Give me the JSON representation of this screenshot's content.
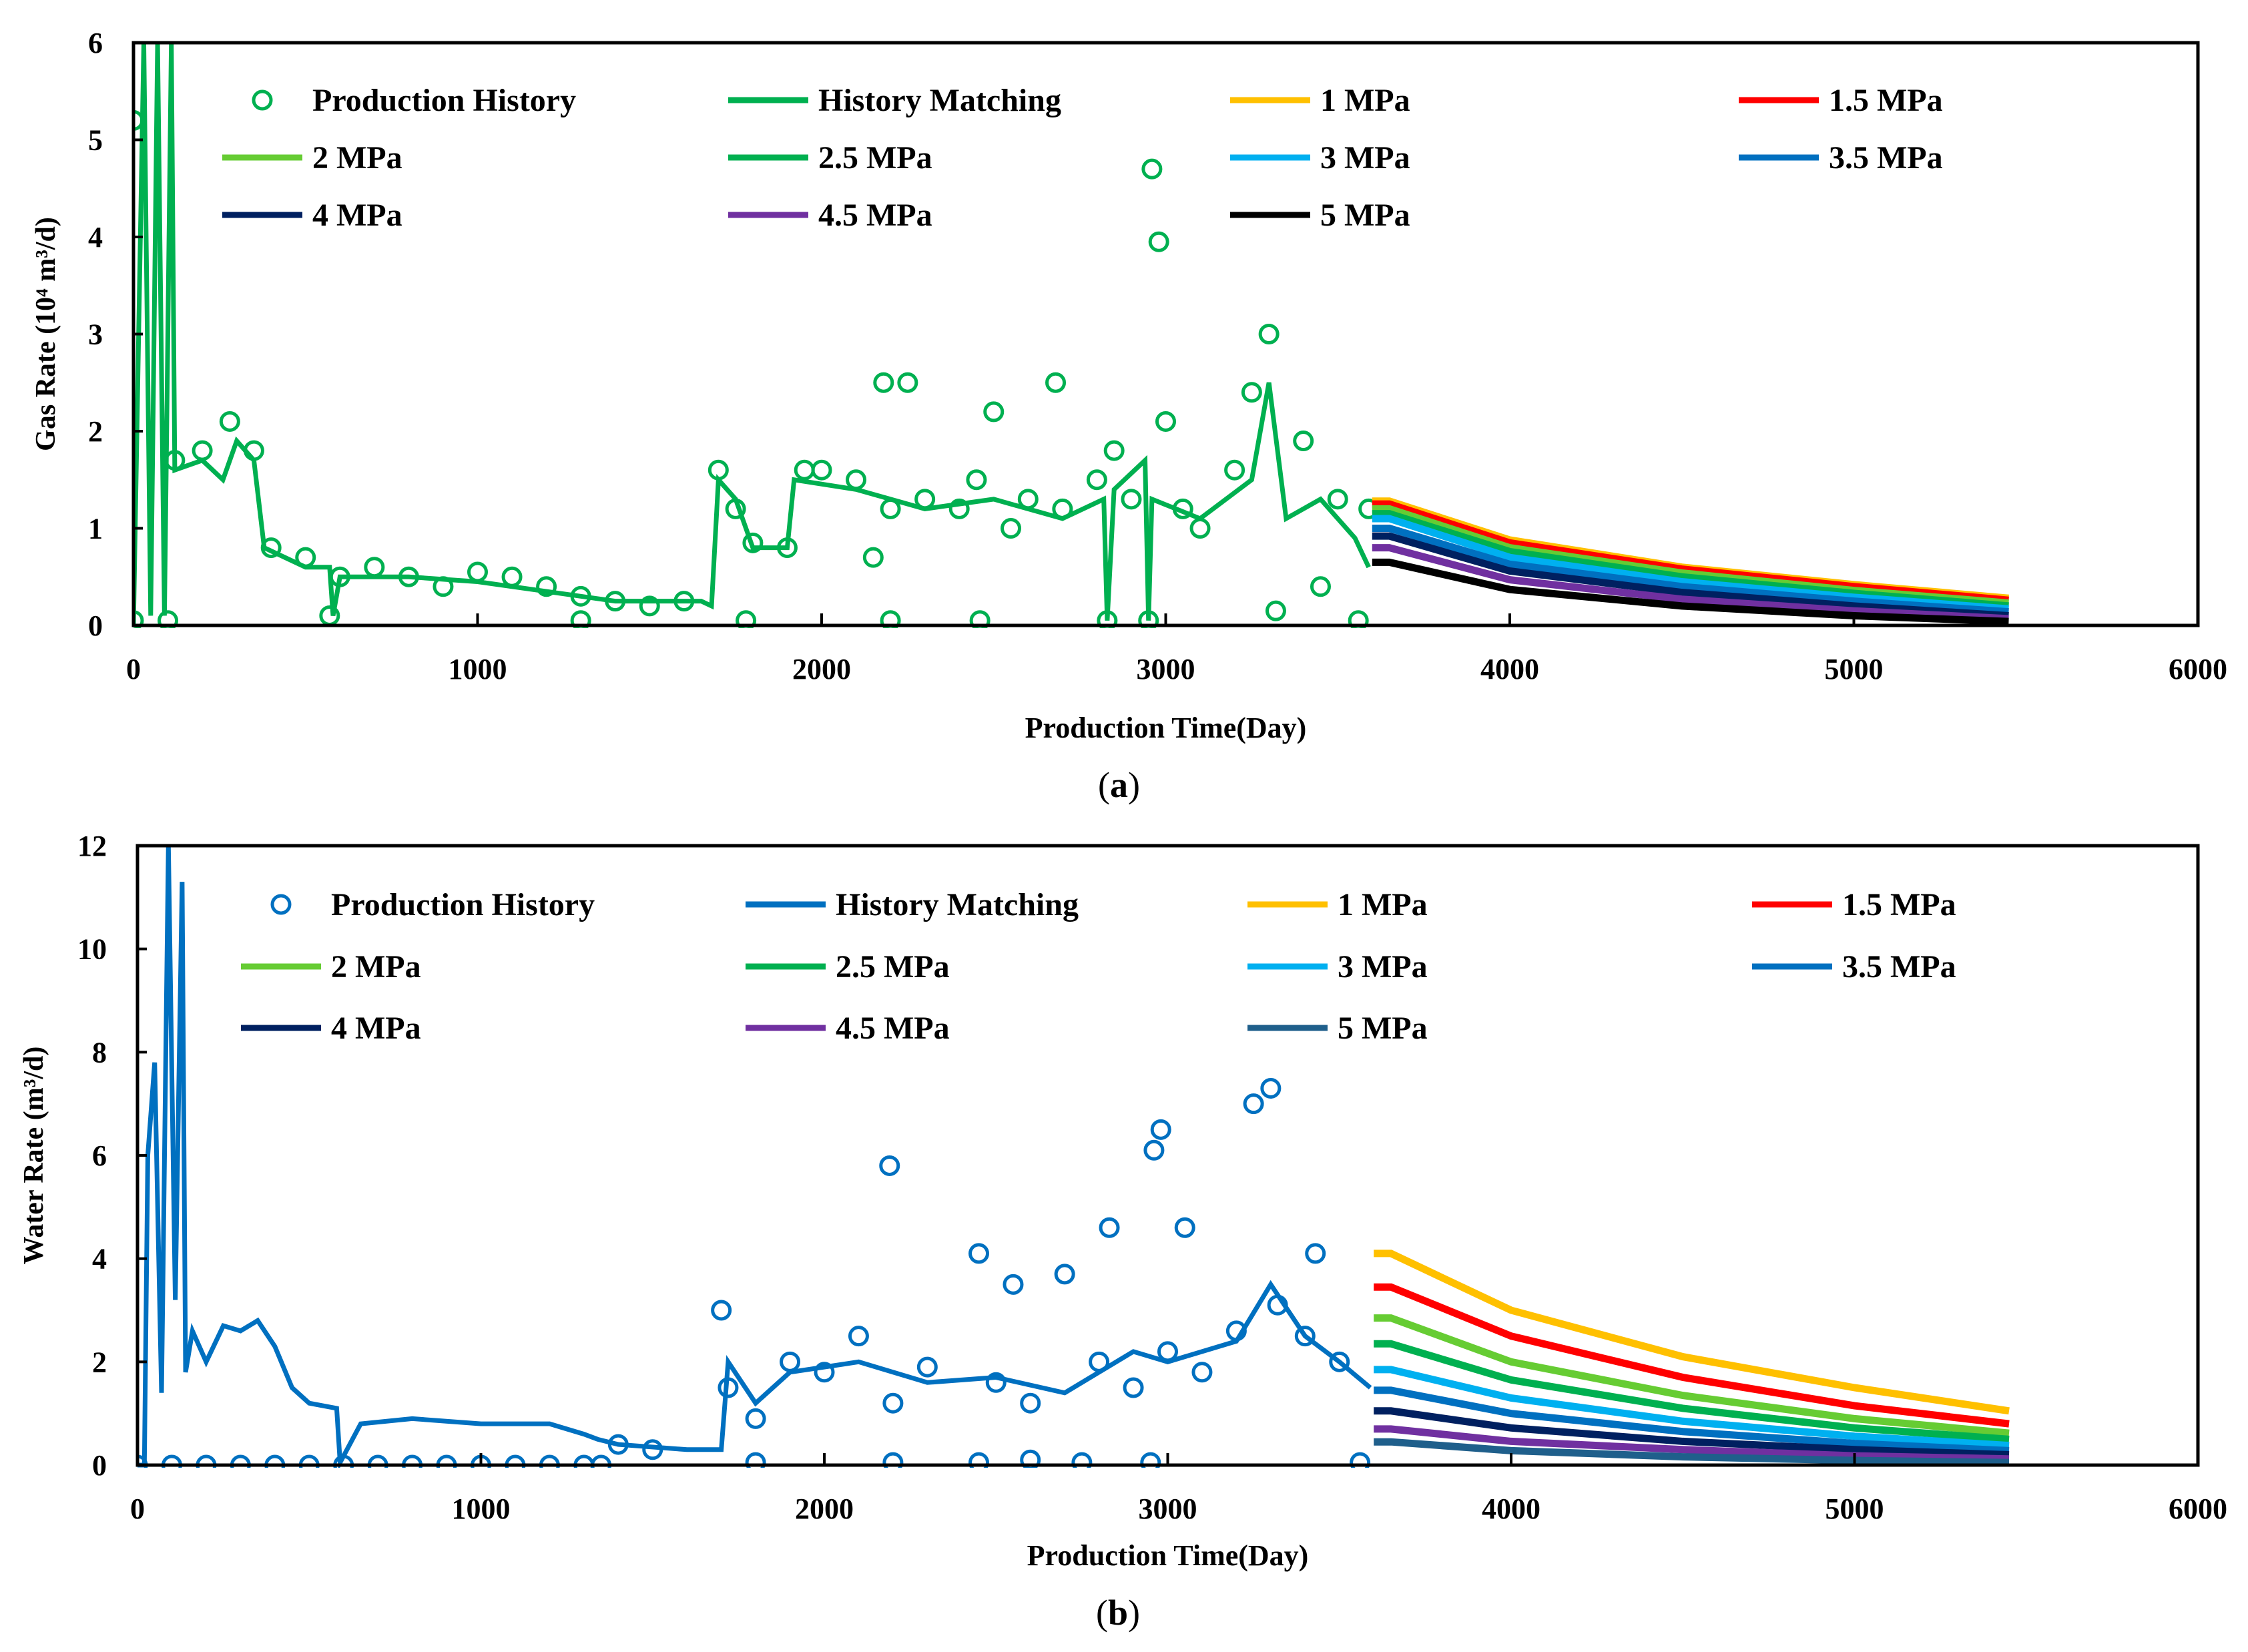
{
  "chart_data": [
    {
      "type": "line",
      "panel_label": "a",
      "xlabel": "Production Time(Day)",
      "ylabel": "Gas Rate (10⁴ m³/d)",
      "xlim": [
        0,
        6000
      ],
      "ylim": [
        0,
        6
      ],
      "xticks": [
        0,
        1000,
        2000,
        3000,
        4000,
        5000,
        6000
      ],
      "yticks": [
        0,
        1,
        2,
        3,
        4,
        5,
        6
      ],
      "grid": false,
      "legend_placement": "top (inside, 4 columns)",
      "history_scatter": {
        "name": "Production History",
        "color": "#00B050",
        "points": [
          [
            0,
            5.2
          ],
          [
            0,
            0.05
          ],
          [
            100,
            0.05
          ],
          [
            120,
            1.7
          ],
          [
            200,
            1.8
          ],
          [
            280,
            2.1
          ],
          [
            350,
            1.8
          ],
          [
            400,
            0.8
          ],
          [
            500,
            0.7
          ],
          [
            570,
            0.1
          ],
          [
            600,
            0.5
          ],
          [
            700,
            0.6
          ],
          [
            800,
            0.5
          ],
          [
            900,
            0.4
          ],
          [
            1000,
            0.55
          ],
          [
            1100,
            0.5
          ],
          [
            1200,
            0.4
          ],
          [
            1300,
            0.05
          ],
          [
            1300,
            0.3
          ],
          [
            1400,
            0.25
          ],
          [
            1500,
            0.2
          ],
          [
            1600,
            0.25
          ],
          [
            1700,
            1.6
          ],
          [
            1750,
            1.2
          ],
          [
            1780,
            0.05
          ],
          [
            1800,
            0.85
          ],
          [
            1900,
            0.8
          ],
          [
            1950,
            1.6
          ],
          [
            2000,
            1.6
          ],
          [
            2100,
            1.5
          ],
          [
            2150,
            0.7
          ],
          [
            2180,
            2.5
          ],
          [
            2200,
            1.2
          ],
          [
            2200,
            0.05
          ],
          [
            2250,
            2.5
          ],
          [
            2300,
            1.3
          ],
          [
            2400,
            1.2
          ],
          [
            2450,
            1.5
          ],
          [
            2460,
            0.05
          ],
          [
            2500,
            2.2
          ],
          [
            2550,
            1.0
          ],
          [
            2600,
            1.3
          ],
          [
            2680,
            2.5
          ],
          [
            2700,
            1.2
          ],
          [
            2800,
            1.5
          ],
          [
            2830,
            0.05
          ],
          [
            2850,
            1.8
          ],
          [
            2900,
            1.3
          ],
          [
            2950,
            0.05
          ],
          [
            2960,
            4.7
          ],
          [
            2980,
            3.95
          ],
          [
            3000,
            2.1
          ],
          [
            3050,
            1.2
          ],
          [
            3100,
            1.0
          ],
          [
            3200,
            1.6
          ],
          [
            3250,
            2.4
          ],
          [
            3300,
            3.0
          ],
          [
            3320,
            0.15
          ],
          [
            3400,
            1.9
          ],
          [
            3450,
            0.4
          ],
          [
            3500,
            1.3
          ],
          [
            3560,
            0.05
          ],
          [
            3590,
            1.2
          ]
        ]
      },
      "history_line": {
        "name": "History Matching",
        "color": "#00B050",
        "points": [
          [
            0,
            0
          ],
          [
            30,
            6
          ],
          [
            50,
            0.1
          ],
          [
            70,
            6
          ],
          [
            90,
            0.1
          ],
          [
            110,
            6
          ],
          [
            120,
            1.6
          ],
          [
            200,
            1.7
          ],
          [
            260,
            1.5
          ],
          [
            300,
            1.9
          ],
          [
            350,
            1.7
          ],
          [
            380,
            0.8
          ],
          [
            500,
            0.6
          ],
          [
            570,
            0.6
          ],
          [
            580,
            0.1
          ],
          [
            600,
            0.5
          ],
          [
            800,
            0.5
          ],
          [
            1000,
            0.45
          ],
          [
            1200,
            0.35
          ],
          [
            1400,
            0.25
          ],
          [
            1650,
            0.25
          ],
          [
            1680,
            0.2
          ],
          [
            1700,
            1.5
          ],
          [
            1750,
            1.3
          ],
          [
            1800,
            0.8
          ],
          [
            1900,
            0.8
          ],
          [
            1920,
            1.5
          ],
          [
            2100,
            1.4
          ],
          [
            2300,
            1.2
          ],
          [
            2500,
            1.3
          ],
          [
            2700,
            1.1
          ],
          [
            2820,
            1.3
          ],
          [
            2830,
            0.05
          ],
          [
            2850,
            1.4
          ],
          [
            2940,
            1.7
          ],
          [
            2950,
            0.05
          ],
          [
            2960,
            1.3
          ],
          [
            3100,
            1.1
          ],
          [
            3250,
            1.5
          ],
          [
            3300,
            2.5
          ],
          [
            3350,
            1.1
          ],
          [
            3450,
            1.3
          ],
          [
            3550,
            0.9
          ],
          [
            3590,
            0.6
          ]
        ]
      },
      "forecast_x": [
        3600,
        3650,
        4000,
        4500,
        5000,
        5450
      ],
      "series": [
        {
          "name": "1 MPa",
          "color": "#FFC000",
          "values": [
            1.28,
            1.28,
            0.88,
            0.6,
            0.42,
            0.28
          ]
        },
        {
          "name": "1.5 MPa",
          "color": "#FF0000",
          "values": [
            1.25,
            1.25,
            0.85,
            0.58,
            0.4,
            0.26
          ]
        },
        {
          "name": "2 MPa",
          "color": "#66CC33",
          "values": [
            1.2,
            1.2,
            0.8,
            0.54,
            0.36,
            0.23
          ]
        },
        {
          "name": "2.5 MPa",
          "color": "#00B050",
          "values": [
            1.15,
            1.15,
            0.76,
            0.5,
            0.33,
            0.2
          ]
        },
        {
          "name": "3 MPa",
          "color": "#00B0F0",
          "values": [
            1.1,
            1.1,
            0.7,
            0.45,
            0.29,
            0.17
          ]
        },
        {
          "name": "3.5 MPa",
          "color": "#0070C0",
          "values": [
            1.0,
            1.0,
            0.63,
            0.4,
            0.25,
            0.14
          ]
        },
        {
          "name": "4 MPa",
          "color": "#002060",
          "values": [
            0.92,
            0.92,
            0.56,
            0.34,
            0.2,
            0.1
          ]
        },
        {
          "name": "4.5 MPa",
          "color": "#7030A0",
          "values": [
            0.8,
            0.8,
            0.47,
            0.27,
            0.15,
            0.07
          ]
        },
        {
          "name": "5 MPa",
          "color": "#000000",
          "values": [
            0.65,
            0.65,
            0.37,
            0.2,
            0.1,
            0.04
          ]
        }
      ]
    },
    {
      "type": "line",
      "panel_label": "b",
      "xlabel": "Production Time(Day)",
      "ylabel": "Water Rate (m³/d)",
      "xlim": [
        0,
        6000
      ],
      "ylim": [
        0,
        12
      ],
      "xticks": [
        0,
        1000,
        2000,
        3000,
        4000,
        5000,
        6000
      ],
      "yticks": [
        0,
        2,
        4,
        6,
        8,
        10,
        12
      ],
      "grid": false,
      "legend_placement": "top (inside, 4 columns)",
      "history_scatter": {
        "name": "Production History",
        "color": "#0070C0",
        "points": [
          [
            0,
            0
          ],
          [
            100,
            0
          ],
          [
            200,
            0
          ],
          [
            300,
            0
          ],
          [
            400,
            0
          ],
          [
            500,
            0
          ],
          [
            600,
            0
          ],
          [
            700,
            0
          ],
          [
            800,
            0
          ],
          [
            900,
            0
          ],
          [
            1000,
            0
          ],
          [
            1100,
            0
          ],
          [
            1200,
            0
          ],
          [
            1300,
            0
          ],
          [
            1350,
            0
          ],
          [
            1400,
            0.4
          ],
          [
            1500,
            0.3
          ],
          [
            1700,
            3.0
          ],
          [
            1720,
            1.5
          ],
          [
            1800,
            0.9
          ],
          [
            1800,
            0.05
          ],
          [
            1900,
            2.0
          ],
          [
            2000,
            1.8
          ],
          [
            2100,
            2.5
          ],
          [
            2190,
            5.8
          ],
          [
            2200,
            1.2
          ],
          [
            2200,
            0.05
          ],
          [
            2300,
            1.9
          ],
          [
            2450,
            4.1
          ],
          [
            2450,
            0.05
          ],
          [
            2500,
            1.6
          ],
          [
            2550,
            3.5
          ],
          [
            2600,
            1.2
          ],
          [
            2600,
            0.1
          ],
          [
            2700,
            3.7
          ],
          [
            2750,
            0.05
          ],
          [
            2800,
            2.0
          ],
          [
            2830,
            4.6
          ],
          [
            2900,
            1.5
          ],
          [
            2950,
            0.05
          ],
          [
            2960,
            6.1
          ],
          [
            2980,
            6.5
          ],
          [
            3000,
            2.2
          ],
          [
            3050,
            4.6
          ],
          [
            3100,
            1.8
          ],
          [
            3200,
            2.6
          ],
          [
            3250,
            7.0
          ],
          [
            3300,
            7.3
          ],
          [
            3320,
            3.1
          ],
          [
            3400,
            2.5
          ],
          [
            3430,
            4.1
          ],
          [
            3500,
            2.0
          ],
          [
            3560,
            0.05
          ]
        ]
      },
      "history_line": {
        "name": "History Matching",
        "color": "#0070C0",
        "points": [
          [
            0,
            0
          ],
          [
            20,
            0
          ],
          [
            30,
            6
          ],
          [
            50,
            7.8
          ],
          [
            70,
            1.4
          ],
          [
            90,
            12
          ],
          [
            110,
            3.2
          ],
          [
            130,
            11.3
          ],
          [
            140,
            1.8
          ],
          [
            160,
            2.6
          ],
          [
            200,
            2.0
          ],
          [
            250,
            2.7
          ],
          [
            300,
            2.6
          ],
          [
            350,
            2.8
          ],
          [
            400,
            2.3
          ],
          [
            450,
            1.5
          ],
          [
            500,
            1.2
          ],
          [
            580,
            1.1
          ],
          [
            590,
            0.05
          ],
          [
            650,
            0.8
          ],
          [
            800,
            0.9
          ],
          [
            1000,
            0.8
          ],
          [
            1200,
            0.8
          ],
          [
            1300,
            0.6
          ],
          [
            1340,
            0.5
          ],
          [
            1400,
            0.4
          ],
          [
            1600,
            0.3
          ],
          [
            1700,
            0.3
          ],
          [
            1720,
            2.0
          ],
          [
            1800,
            1.2
          ],
          [
            1900,
            1.8
          ],
          [
            2100,
            2.0
          ],
          [
            2300,
            1.6
          ],
          [
            2500,
            1.7
          ],
          [
            2700,
            1.4
          ],
          [
            2900,
            2.2
          ],
          [
            3000,
            2.0
          ],
          [
            3200,
            2.4
          ],
          [
            3300,
            3.5
          ],
          [
            3400,
            2.5
          ],
          [
            3500,
            2.0
          ],
          [
            3590,
            1.5
          ]
        ]
      },
      "forecast_x": [
        3600,
        3650,
        4000,
        4500,
        5000,
        5450
      ],
      "series": [
        {
          "name": "1 MPa",
          "color": "#FFC000",
          "values": [
            4.1,
            4.1,
            3.0,
            2.1,
            1.5,
            1.05
          ]
        },
        {
          "name": "1.5 MPa",
          "color": "#FF0000",
          "values": [
            3.45,
            3.45,
            2.5,
            1.7,
            1.15,
            0.8
          ]
        },
        {
          "name": "2 MPa",
          "color": "#66CC33",
          "values": [
            2.85,
            2.85,
            2.0,
            1.35,
            0.9,
            0.62
          ]
        },
        {
          "name": "2.5 MPa",
          "color": "#00B050",
          "values": [
            2.35,
            2.35,
            1.65,
            1.1,
            0.72,
            0.5
          ]
        },
        {
          "name": "3 MPa",
          "color": "#00B0F0",
          "values": [
            1.85,
            1.85,
            1.3,
            0.85,
            0.56,
            0.38
          ]
        },
        {
          "name": "3.5 MPa",
          "color": "#0070C0",
          "values": [
            1.45,
            1.45,
            1.0,
            0.65,
            0.42,
            0.28
          ]
        },
        {
          "name": "4 MPa",
          "color": "#002060",
          "values": [
            1.05,
            1.05,
            0.72,
            0.46,
            0.3,
            0.2
          ]
        },
        {
          "name": "4.5 MPa",
          "color": "#7030A0",
          "values": [
            0.7,
            0.7,
            0.46,
            0.3,
            0.18,
            0.12
          ]
        },
        {
          "name": "5 MPa",
          "color": "#1F5F8B",
          "values": [
            0.45,
            0.45,
            0.28,
            0.16,
            0.09,
            0.05
          ]
        }
      ]
    }
  ],
  "captions": {
    "a": "a",
    "b": "b"
  }
}
